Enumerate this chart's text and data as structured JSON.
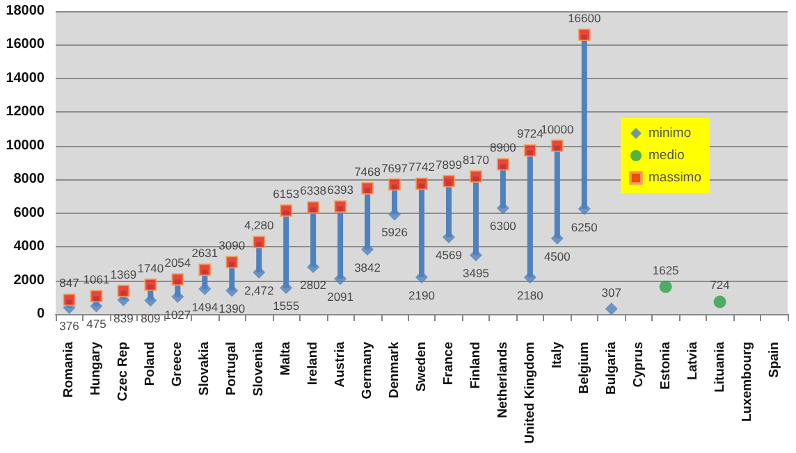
{
  "chart_data": {
    "type": "scatter",
    "categories": [
      "Romania",
      "Hungary",
      "Czec Rep",
      "Poland",
      "Greece",
      "Slovakia",
      "Portugal",
      "Slovenia",
      "Malta",
      "Ireland",
      "Austria",
      "Germany",
      "Denmark",
      "Sweden",
      "France",
      "Finland",
      "Netherlands",
      "United Kingdom",
      "Italy",
      "Belgium",
      "Bulgaria",
      "Cyprus",
      "Estonia",
      "Latvia",
      "Lituania",
      "Luxembourg",
      "Spain"
    ],
    "series": [
      {
        "name": "minimo",
        "color": "#4f81bd",
        "marker": "diamond",
        "values": [
          376,
          475,
          839,
          809,
          1027,
          1494,
          1390,
          2472,
          1555,
          2802,
          2091,
          3842,
          5926,
          2190,
          4569,
          3495,
          6300,
          2180,
          4500,
          6250,
          307,
          null,
          null,
          null,
          null,
          null,
          null
        ],
        "value_labels": [
          "376",
          "475",
          "839",
          "809",
          "1027",
          "1494",
          "1390",
          "2,472",
          "1555",
          "2802",
          "2091",
          "3842",
          "5926",
          "2190",
          "4569",
          "3495",
          "6300",
          "2180",
          "4500",
          "6250",
          "307",
          null,
          null,
          null,
          null,
          null,
          null
        ]
      },
      {
        "name": "medio",
        "color": "#2ca048",
        "marker": "circle",
        "values": [
          null,
          null,
          null,
          null,
          null,
          null,
          null,
          null,
          null,
          null,
          null,
          null,
          null,
          null,
          null,
          null,
          null,
          null,
          null,
          null,
          null,
          null,
          1625,
          null,
          724,
          null,
          null
        ],
        "value_labels": [
          null,
          null,
          null,
          null,
          null,
          null,
          null,
          null,
          null,
          null,
          null,
          null,
          null,
          null,
          null,
          null,
          null,
          null,
          null,
          null,
          null,
          null,
          "1625",
          null,
          "724",
          null,
          null
        ]
      },
      {
        "name": "massimo",
        "color": "#e8220f",
        "marker": "square",
        "values": [
          847,
          1061,
          1369,
          1740,
          2054,
          2631,
          3090,
          4280,
          6153,
          6338,
          6393,
          7468,
          7697,
          7742,
          7899,
          8170,
          8900,
          9724,
          10000,
          16600,
          null,
          null,
          null,
          null,
          null,
          null,
          null
        ],
        "value_labels": [
          "847",
          "1061",
          "1369",
          "1740",
          "2054",
          "2631",
          "3090",
          "4,280",
          "6153",
          "6338",
          "6393",
          "7468",
          "7697",
          "7742",
          "7899",
          "8170",
          "8900",
          "9724",
          "10000",
          "16600",
          null,
          null,
          null,
          null,
          null,
          null,
          null
        ]
      }
    ],
    "ylim": [
      0,
      18000
    ],
    "yticks": [
      0,
      2000,
      4000,
      6000,
      8000,
      10000,
      12000,
      14000,
      16000,
      18000
    ],
    "grid": "y",
    "legend": "top right"
  }
}
